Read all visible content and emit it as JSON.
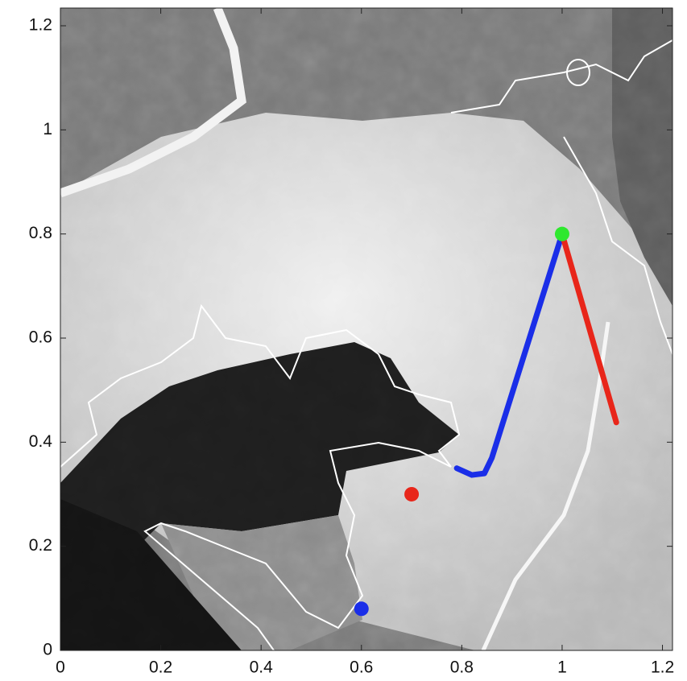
{
  "chart_data": {
    "type": "line",
    "xlim": [
      0,
      1.22
    ],
    "ylim": [
      0,
      1.234
    ],
    "xticks": [
      0,
      0.2,
      0.4,
      0.6,
      0.8,
      1,
      1.2
    ],
    "yticks": [
      0,
      0.2,
      0.4,
      0.6,
      0.8,
      1,
      1.2
    ],
    "series": [
      {
        "color": "#1a2ee8",
        "x": [
          1.0,
          0.86,
          0.845,
          0.82,
          0.79
        ],
        "y": [
          0.8,
          0.37,
          0.34,
          0.337,
          0.35
        ]
      },
      {
        "color": "#e8261a",
        "x": [
          1.0,
          1.108
        ],
        "y": [
          0.8,
          0.438
        ]
      }
    ],
    "points": [
      {
        "color": "#2ee82e",
        "x": [
          1.0
        ],
        "y": [
          0.8
        ]
      },
      {
        "color": "#e8261a",
        "x": [
          0.7
        ],
        "y": [
          0.3
        ]
      },
      {
        "color": "#1a2ee8",
        "x": [
          0.6
        ],
        "y": [
          0.08
        ]
      }
    ]
  }
}
